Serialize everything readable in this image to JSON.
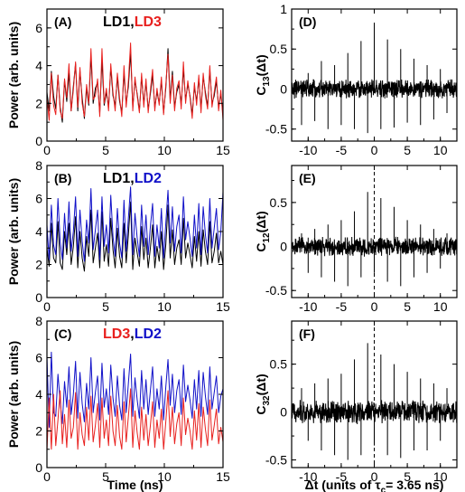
{
  "chart_data": [
    {
      "type": "line",
      "label": "(A)",
      "title_parts": [
        {
          "text": "LD1",
          "color": "#000000"
        },
        {
          "text": ",",
          "color": "#000000"
        },
        {
          "text": "LD3",
          "color": "#e8201e"
        }
      ],
      "xlabel": "",
      "ylabel": "Power (arb. units)",
      "xlim": [
        0,
        15
      ],
      "ylim": [
        0,
        7
      ],
      "xticks": [
        0,
        5,
        10,
        15
      ],
      "yticks": [
        0,
        2,
        4,
        6
      ],
      "series": [
        {
          "color": "#000000",
          "x0": 0,
          "x1": 15,
          "values": [
            2.6,
            1.6,
            3.7,
            2.4,
            1.7,
            3.5,
            1.8,
            1.0,
            3.2,
            2.1,
            3.6,
            1.6,
            2.9,
            4.1,
            1.6,
            3.7,
            2.3,
            1.2,
            2.8,
            1.9,
            4.5,
            2.0,
            2.8,
            3.1,
            1.5,
            4.3,
            1.9,
            2.6,
            1.8,
            3.9,
            2.4,
            1.9,
            3.4,
            2.1,
            1.5,
            3.6,
            2.0,
            2.9,
            4.7,
            1.8,
            3.2,
            2.5,
            1.6,
            3.4,
            2.0,
            3.1,
            1.7,
            2.5,
            3.5,
            1.8,
            2.6,
            2.0,
            3.2,
            1.5,
            2.8,
            4.9,
            2.2,
            3.7,
            1.8,
            2.6,
            3.0,
            1.9,
            3.8,
            2.2,
            3.0,
            2.4,
            1.4,
            2.9,
            2.1,
            3.3,
            1.7,
            3.4,
            2.6,
            1.8,
            3.8,
            2.0,
            2.4,
            3.2,
            1.8,
            2.5,
            1.4
          ]
        },
        {
          "color": "#e8201e",
          "x0": 0,
          "x1": 15,
          "values": [
            2.3,
            1.1,
            3.6,
            1.9,
            1.4,
            3.5,
            1.6,
            1.2,
            3.3,
            2.3,
            4.1,
            1.6,
            2.7,
            4.2,
            1.8,
            3.9,
            2.0,
            1.3,
            3.0,
            2.0,
            4.9,
            2.2,
            2.4,
            3.3,
            1.3,
            4.9,
            2.0,
            2.8,
            1.6,
            4.1,
            2.6,
            1.6,
            3.6,
            2.3,
            1.3,
            4.0,
            1.8,
            3.2,
            5.2,
            1.6,
            3.4,
            2.4,
            1.5,
            3.6,
            1.8,
            3.3,
            1.5,
            2.7,
            3.8,
            1.6,
            2.8,
            1.9,
            3.4,
            1.4,
            3.0,
            4.6,
            2.0,
            3.5,
            1.6,
            2.8,
            3.2,
            1.7,
            4.2,
            2.0,
            3.2,
            2.3,
            1.2,
            3.1,
            1.9,
            3.5,
            1.5,
            3.6,
            2.4,
            1.7,
            4.0,
            1.8,
            2.6,
            3.4,
            1.6,
            2.7,
            1.1
          ]
        }
      ]
    },
    {
      "type": "line",
      "label": "(B)",
      "title_parts": [
        {
          "text": "LD1",
          "color": "#000000"
        },
        {
          "text": ",",
          "color": "#000000"
        },
        {
          "text": "LD2",
          "color": "#1010c8"
        }
      ],
      "xlabel": "",
      "ylabel": "Power (arb. units)",
      "xlim": [
        0,
        15
      ],
      "ylim": [
        0,
        8
      ],
      "xticks": [
        0,
        5,
        10,
        15
      ],
      "yticks": [
        0,
        2,
        4,
        6,
        8
      ],
      "series": [
        {
          "color": "#000000",
          "x0": 0,
          "x1": 15,
          "values": [
            3.0,
            1.9,
            4.5,
            2.4,
            2.1,
            4.6,
            2.1,
            1.7,
            4.0,
            2.6,
            4.5,
            2.0,
            3.1,
            4.9,
            1.8,
            4.0,
            2.4,
            1.6,
            3.7,
            2.5,
            5.3,
            2.1,
            3.0,
            3.9,
            1.8,
            5.2,
            2.2,
            3.2,
            1.9,
            4.8,
            2.9,
            1.8,
            4.2,
            2.5,
            1.8,
            4.5,
            2.1,
            3.8,
            5.8,
            1.7,
            3.6,
            2.7,
            1.9,
            4.3,
            2.3,
            3.6,
            1.8,
            3.0,
            4.4,
            1.8,
            3.1,
            2.2,
            4.0,
            1.7,
            3.2,
            5.6,
            2.4,
            4.1,
            2.0,
            3.0,
            3.5,
            2.0,
            4.8,
            2.4,
            3.3,
            2.6,
            1.8,
            3.7,
            2.2,
            4.0,
            1.9,
            4.1,
            2.8,
            2.0,
            4.6,
            2.1,
            2.8,
            3.9,
            2.1,
            2.8,
            2.0
          ]
        },
        {
          "color": "#1010c8",
          "x0": 0,
          "x1": 15,
          "values": [
            4.4,
            2.3,
            5.6,
            3.2,
            2.6,
            6.0,
            3.4,
            2.3,
            5.1,
            3.0,
            5.8,
            2.8,
            4.0,
            6.1,
            2.5,
            5.3,
            3.4,
            2.2,
            4.7,
            3.3,
            6.6,
            2.9,
            4.1,
            5.3,
            2.3,
            6.1,
            3.1,
            4.4,
            2.7,
            6.2,
            3.7,
            2.5,
            5.4,
            3.3,
            2.4,
            5.9,
            2.8,
            4.8,
            6.7,
            2.6,
            5.1,
            3.6,
            2.5,
            5.6,
            3.1,
            5.0,
            2.6,
            4.3,
            5.7,
            2.5,
            4.4,
            3.0,
            5.4,
            2.4,
            4.5,
            6.5,
            3.3,
            5.5,
            2.8,
            4.3,
            5.0,
            2.7,
            6.1,
            3.5,
            4.6,
            3.6,
            2.5,
            5.0,
            3.0,
            5.7,
            2.6,
            5.5,
            3.8,
            2.7,
            6.0,
            3.0,
            4.2,
            5.4,
            2.9,
            4.0,
            6.4
          ]
        }
      ]
    },
    {
      "type": "line",
      "label": "(C)",
      "title_parts": [
        {
          "text": "LD3",
          "color": "#e8201e"
        },
        {
          "text": ",",
          "color": "#000000"
        },
        {
          "text": "LD2",
          "color": "#1010c8"
        }
      ],
      "xlabel": "Time (ns)",
      "ylabel": "Power (arb. units)",
      "xlim": [
        0,
        15
      ],
      "ylim": [
        0,
        8
      ],
      "xticks": [
        0,
        5,
        10,
        15
      ],
      "yticks": [
        0,
        2,
        4,
        6,
        8
      ],
      "series": [
        {
          "color": "#1010c8",
          "x0": 0,
          "x1": 15,
          "values": [
            6.1,
            2.2,
            6.3,
            3.0,
            2.8,
            5.1,
            3.6,
            2.4,
            4.7,
            3.3,
            5.5,
            2.9,
            4.0,
            5.8,
            2.7,
            5.2,
            3.5,
            2.5,
            4.6,
            3.2,
            6.0,
            3.0,
            4.1,
            5.0,
            2.6,
            5.7,
            3.3,
            4.3,
            2.9,
            5.6,
            3.8,
            2.8,
            5.0,
            3.4,
            2.6,
            5.4,
            3.0,
            4.6,
            6.2,
            2.8,
            4.9,
            3.7,
            2.7,
            5.3,
            3.2,
            4.8,
            2.9,
            4.2,
            5.5,
            2.8,
            4.3,
            3.2,
            5.0,
            2.6,
            4.4,
            5.9,
            3.4,
            5.1,
            3.0,
            4.2,
            4.8,
            2.9,
            5.6,
            3.6,
            4.5,
            3.7,
            2.7,
            4.8,
            3.2,
            5.3,
            2.8,
            5.2,
            3.9,
            2.9,
            5.5,
            3.2,
            4.1,
            5.0,
            3.0,
            3.9,
            4.3
          ]
        },
        {
          "color": "#e8201e",
          "x0": 0,
          "x1": 15,
          "values": [
            0.9,
            3.8,
            1.0,
            4.0,
            1.2,
            2.6,
            4.2,
            1.3,
            2.9,
            1.1,
            3.7,
            1.6,
            2.2,
            4.1,
            1.0,
            3.0,
            1.8,
            1.2,
            3.3,
            1.5,
            3.9,
            1.4,
            2.3,
            3.5,
            1.1,
            3.8,
            1.6,
            2.6,
            1.2,
            3.9,
            2.0,
            1.2,
            3.4,
            1.7,
            1.0,
            3.6,
            1.4,
            2.8,
            4.3,
            1.1,
            3.1,
            1.9,
            1.0,
            3.3,
            1.5,
            2.9,
            1.2,
            2.3,
            3.6,
            1.1,
            2.6,
            1.6,
            3.2,
            1.0,
            2.5,
            4.2,
            1.7,
            3.3,
            1.3,
            2.4,
            3.0,
            1.2,
            3.8,
            1.8,
            2.7,
            2.0,
            1.0,
            3.1,
            1.5,
            3.5,
            1.1,
            3.3,
            2.1,
            1.2,
            3.7,
            1.5,
            2.3,
            3.2,
            1.3,
            2.2,
            1.4
          ]
        }
      ]
    },
    {
      "type": "line",
      "label": "(D)",
      "xlabel": "",
      "ylabel": "C13(Δt)",
      "ylabel_main": "C",
      "ylabel_sub": "13",
      "ylabel_rest": "(Δt)",
      "xlim": [
        -12.5,
        12.5
      ],
      "ylim": [
        -0.65,
        1.0
      ],
      "xticks": [
        -10,
        -5,
        0,
        5,
        10
      ],
      "yticks": [
        -0.5,
        0,
        0.5,
        1
      ],
      "ytick_labels": [
        "-0.5",
        "0",
        "0.5",
        "1"
      ],
      "dashed_zero_line": false,
      "noise_amplitude": 0.1,
      "spikes": [
        {
          "x": -11,
          "v": -0.45
        },
        {
          "x": -10,
          "v": 0.2
        },
        {
          "x": -9,
          "v": -0.4
        },
        {
          "x": -8,
          "v": 0.35
        },
        {
          "x": -7,
          "v": -0.5
        },
        {
          "x": -6,
          "v": 0.3
        },
        {
          "x": -5,
          "v": -0.45
        },
        {
          "x": -4,
          "v": 0.45
        },
        {
          "x": -3,
          "v": -0.5
        },
        {
          "x": -2,
          "v": 0.6
        },
        {
          "x": -1,
          "v": -0.55
        },
        {
          "x": 0,
          "v": 0.83
        },
        {
          "x": 1,
          "v": -0.5
        },
        {
          "x": 2,
          "v": 0.62
        },
        {
          "x": 3,
          "v": -0.48
        },
        {
          "x": 4,
          "v": 0.5
        },
        {
          "x": 5,
          "v": -0.42
        },
        {
          "x": 6,
          "v": 0.38
        },
        {
          "x": 7,
          "v": -0.45
        },
        {
          "x": 8,
          "v": 0.3
        },
        {
          "x": 9,
          "v": -0.38
        },
        {
          "x": 10,
          "v": 0.25
        },
        {
          "x": 11,
          "v": -0.3
        }
      ]
    },
    {
      "type": "line",
      "label": "(E)",
      "xlabel": "",
      "ylabel": "C12(Δt)",
      "ylabel_main": "C",
      "ylabel_sub": "12",
      "ylabel_rest": "(Δt)",
      "xlim": [
        -12.5,
        12.5
      ],
      "ylim": [
        -0.58,
        0.92
      ],
      "xticks": [
        -10,
        -5,
        0,
        5,
        10
      ],
      "yticks": [
        -0.5,
        0,
        0.5
      ],
      "ytick_labels": [
        "-0.5",
        "0",
        "0.5"
      ],
      "dashed_zero_line": true,
      "noise_amplitude": 0.09,
      "spikes": [
        {
          "x": -11,
          "v": 0.15
        },
        {
          "x": -10,
          "v": -0.3
        },
        {
          "x": -9,
          "v": 0.2
        },
        {
          "x": -8,
          "v": -0.35
        },
        {
          "x": -7,
          "v": 0.25
        },
        {
          "x": -6,
          "v": -0.4
        },
        {
          "x": -5,
          "v": 0.3
        },
        {
          "x": -4,
          "v": -0.45
        },
        {
          "x": -3,
          "v": 0.4
        },
        {
          "x": -2,
          "v": -0.35
        },
        {
          "x": -1,
          "v": 0.62
        },
        {
          "x": 0,
          "v": -0.3
        },
        {
          "x": 1,
          "v": 0.55
        },
        {
          "x": 2,
          "v": -0.4
        },
        {
          "x": 3,
          "v": 0.45
        },
        {
          "x": 4,
          "v": -0.45
        },
        {
          "x": 5,
          "v": 0.3
        },
        {
          "x": 6,
          "v": -0.35
        },
        {
          "x": 7,
          "v": 0.25
        },
        {
          "x": 8,
          "v": -0.3
        },
        {
          "x": 9,
          "v": 0.2
        },
        {
          "x": 10,
          "v": -0.25
        },
        {
          "x": 11,
          "v": 0.15
        }
      ]
    },
    {
      "type": "line",
      "label": "(F)",
      "xlabel": "Δt (units of τc= 3.65 ns)",
      "xlabel_main": "Δt (units of τ",
      "xlabel_sub": "c",
      "xlabel_rest": "= 3.65 ns)",
      "ylabel": "C32(Δt)",
      "ylabel_main": "C",
      "ylabel_sub": "32",
      "ylabel_rest": "(Δt)",
      "xlim": [
        -12.5,
        12.5
      ],
      "ylim": [
        -0.58,
        0.95
      ],
      "xticks": [
        -10,
        -5,
        0,
        5,
        10
      ],
      "yticks": [
        -0.5,
        0,
        0.5
      ],
      "ytick_labels": [
        "-0.5",
        "0",
        "0.5"
      ],
      "dashed_zero_line": true,
      "noise_amplitude": 0.1,
      "spikes": [
        {
          "x": -11,
          "v": 0.25
        },
        {
          "x": -10,
          "v": -0.3
        },
        {
          "x": -9,
          "v": 0.3
        },
        {
          "x": -8,
          "v": -0.4
        },
        {
          "x": -7,
          "v": 0.35
        },
        {
          "x": -6,
          "v": -0.45
        },
        {
          "x": -5,
          "v": 0.4
        },
        {
          "x": -4,
          "v": -0.5
        },
        {
          "x": -3,
          "v": 0.55
        },
        {
          "x": -2,
          "v": -0.45
        },
        {
          "x": -1,
          "v": 0.72
        },
        {
          "x": 0,
          "v": -0.35
        },
        {
          "x": 1,
          "v": 0.6
        },
        {
          "x": 2,
          "v": -0.45
        },
        {
          "x": 3,
          "v": 0.5
        },
        {
          "x": 4,
          "v": -0.48
        },
        {
          "x": 5,
          "v": 0.42
        },
        {
          "x": 6,
          "v": -0.4
        },
        {
          "x": 7,
          "v": 0.35
        },
        {
          "x": 8,
          "v": -0.4
        },
        {
          "x": 9,
          "v": 0.3
        },
        {
          "x": 10,
          "v": -0.3
        },
        {
          "x": 11,
          "v": 0.25
        }
      ]
    }
  ]
}
